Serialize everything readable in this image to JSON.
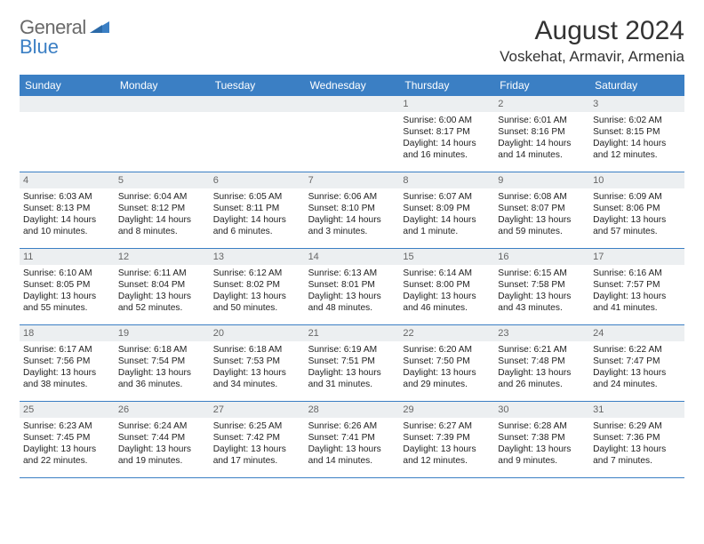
{
  "logo": {
    "text_gray": "General",
    "text_blue": "Blue"
  },
  "title": "August 2024",
  "location": "Voskehat, Armavir, Armenia",
  "colors": {
    "header_bg": "#3b7fc4",
    "header_text": "#ffffff",
    "daynum_bg": "#eceff1",
    "daynum_text": "#666666",
    "cell_border": "#3b7fc4",
    "body_text": "#222222",
    "logo_gray": "#6a6a6a",
    "logo_blue": "#3b7fc4"
  },
  "typography": {
    "title_fontsize": 30,
    "location_fontsize": 17,
    "weekday_fontsize": 12,
    "cell_fontsize": 10.2,
    "daynum_fontsize": 11,
    "logo_fontsize": 22
  },
  "weekdays": [
    "Sunday",
    "Monday",
    "Tuesday",
    "Wednesday",
    "Thursday",
    "Friday",
    "Saturday"
  ],
  "days": [
    {
      "n": "",
      "sr": "",
      "ss": "",
      "dl1": "",
      "dl2": ""
    },
    {
      "n": "",
      "sr": "",
      "ss": "",
      "dl1": "",
      "dl2": ""
    },
    {
      "n": "",
      "sr": "",
      "ss": "",
      "dl1": "",
      "dl2": ""
    },
    {
      "n": "",
      "sr": "",
      "ss": "",
      "dl1": "",
      "dl2": ""
    },
    {
      "n": "1",
      "sr": "Sunrise: 6:00 AM",
      "ss": "Sunset: 8:17 PM",
      "dl1": "Daylight: 14 hours",
      "dl2": "and 16 minutes."
    },
    {
      "n": "2",
      "sr": "Sunrise: 6:01 AM",
      "ss": "Sunset: 8:16 PM",
      "dl1": "Daylight: 14 hours",
      "dl2": "and 14 minutes."
    },
    {
      "n": "3",
      "sr": "Sunrise: 6:02 AM",
      "ss": "Sunset: 8:15 PM",
      "dl1": "Daylight: 14 hours",
      "dl2": "and 12 minutes."
    },
    {
      "n": "4",
      "sr": "Sunrise: 6:03 AM",
      "ss": "Sunset: 8:13 PM",
      "dl1": "Daylight: 14 hours",
      "dl2": "and 10 minutes."
    },
    {
      "n": "5",
      "sr": "Sunrise: 6:04 AM",
      "ss": "Sunset: 8:12 PM",
      "dl1": "Daylight: 14 hours",
      "dl2": "and 8 minutes."
    },
    {
      "n": "6",
      "sr": "Sunrise: 6:05 AM",
      "ss": "Sunset: 8:11 PM",
      "dl1": "Daylight: 14 hours",
      "dl2": "and 6 minutes."
    },
    {
      "n": "7",
      "sr": "Sunrise: 6:06 AM",
      "ss": "Sunset: 8:10 PM",
      "dl1": "Daylight: 14 hours",
      "dl2": "and 3 minutes."
    },
    {
      "n": "8",
      "sr": "Sunrise: 6:07 AM",
      "ss": "Sunset: 8:09 PM",
      "dl1": "Daylight: 14 hours",
      "dl2": "and 1 minute."
    },
    {
      "n": "9",
      "sr": "Sunrise: 6:08 AM",
      "ss": "Sunset: 8:07 PM",
      "dl1": "Daylight: 13 hours",
      "dl2": "and 59 minutes."
    },
    {
      "n": "10",
      "sr": "Sunrise: 6:09 AM",
      "ss": "Sunset: 8:06 PM",
      "dl1": "Daylight: 13 hours",
      "dl2": "and 57 minutes."
    },
    {
      "n": "11",
      "sr": "Sunrise: 6:10 AM",
      "ss": "Sunset: 8:05 PM",
      "dl1": "Daylight: 13 hours",
      "dl2": "and 55 minutes."
    },
    {
      "n": "12",
      "sr": "Sunrise: 6:11 AM",
      "ss": "Sunset: 8:04 PM",
      "dl1": "Daylight: 13 hours",
      "dl2": "and 52 minutes."
    },
    {
      "n": "13",
      "sr": "Sunrise: 6:12 AM",
      "ss": "Sunset: 8:02 PM",
      "dl1": "Daylight: 13 hours",
      "dl2": "and 50 minutes."
    },
    {
      "n": "14",
      "sr": "Sunrise: 6:13 AM",
      "ss": "Sunset: 8:01 PM",
      "dl1": "Daylight: 13 hours",
      "dl2": "and 48 minutes."
    },
    {
      "n": "15",
      "sr": "Sunrise: 6:14 AM",
      "ss": "Sunset: 8:00 PM",
      "dl1": "Daylight: 13 hours",
      "dl2": "and 46 minutes."
    },
    {
      "n": "16",
      "sr": "Sunrise: 6:15 AM",
      "ss": "Sunset: 7:58 PM",
      "dl1": "Daylight: 13 hours",
      "dl2": "and 43 minutes."
    },
    {
      "n": "17",
      "sr": "Sunrise: 6:16 AM",
      "ss": "Sunset: 7:57 PM",
      "dl1": "Daylight: 13 hours",
      "dl2": "and 41 minutes."
    },
    {
      "n": "18",
      "sr": "Sunrise: 6:17 AM",
      "ss": "Sunset: 7:56 PM",
      "dl1": "Daylight: 13 hours",
      "dl2": "and 38 minutes."
    },
    {
      "n": "19",
      "sr": "Sunrise: 6:18 AM",
      "ss": "Sunset: 7:54 PM",
      "dl1": "Daylight: 13 hours",
      "dl2": "and 36 minutes."
    },
    {
      "n": "20",
      "sr": "Sunrise: 6:18 AM",
      "ss": "Sunset: 7:53 PM",
      "dl1": "Daylight: 13 hours",
      "dl2": "and 34 minutes."
    },
    {
      "n": "21",
      "sr": "Sunrise: 6:19 AM",
      "ss": "Sunset: 7:51 PM",
      "dl1": "Daylight: 13 hours",
      "dl2": "and 31 minutes."
    },
    {
      "n": "22",
      "sr": "Sunrise: 6:20 AM",
      "ss": "Sunset: 7:50 PM",
      "dl1": "Daylight: 13 hours",
      "dl2": "and 29 minutes."
    },
    {
      "n": "23",
      "sr": "Sunrise: 6:21 AM",
      "ss": "Sunset: 7:48 PM",
      "dl1": "Daylight: 13 hours",
      "dl2": "and 26 minutes."
    },
    {
      "n": "24",
      "sr": "Sunrise: 6:22 AM",
      "ss": "Sunset: 7:47 PM",
      "dl1": "Daylight: 13 hours",
      "dl2": "and 24 minutes."
    },
    {
      "n": "25",
      "sr": "Sunrise: 6:23 AM",
      "ss": "Sunset: 7:45 PM",
      "dl1": "Daylight: 13 hours",
      "dl2": "and 22 minutes."
    },
    {
      "n": "26",
      "sr": "Sunrise: 6:24 AM",
      "ss": "Sunset: 7:44 PM",
      "dl1": "Daylight: 13 hours",
      "dl2": "and 19 minutes."
    },
    {
      "n": "27",
      "sr": "Sunrise: 6:25 AM",
      "ss": "Sunset: 7:42 PM",
      "dl1": "Daylight: 13 hours",
      "dl2": "and 17 minutes."
    },
    {
      "n": "28",
      "sr": "Sunrise: 6:26 AM",
      "ss": "Sunset: 7:41 PM",
      "dl1": "Daylight: 13 hours",
      "dl2": "and 14 minutes."
    },
    {
      "n": "29",
      "sr": "Sunrise: 6:27 AM",
      "ss": "Sunset: 7:39 PM",
      "dl1": "Daylight: 13 hours",
      "dl2": "and 12 minutes."
    },
    {
      "n": "30",
      "sr": "Sunrise: 6:28 AM",
      "ss": "Sunset: 7:38 PM",
      "dl1": "Daylight: 13 hours",
      "dl2": "and 9 minutes."
    },
    {
      "n": "31",
      "sr": "Sunrise: 6:29 AM",
      "ss": "Sunset: 7:36 PM",
      "dl1": "Daylight: 13 hours",
      "dl2": "and 7 minutes."
    }
  ]
}
